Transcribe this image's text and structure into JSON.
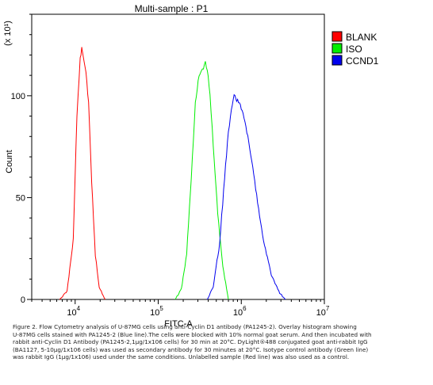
{
  "chart_data": {
    "type": "line",
    "title": "Multi-sample : P1",
    "xlabel": "FITC-A",
    "ylabel": "Count",
    "y_scale_note": "(x 10¹)",
    "x_scale": "log",
    "xlim": [
      3000,
      10000000
    ],
    "ylim": [
      0,
      140
    ],
    "x_ticks": [
      {
        "value": 10000,
        "base": "10",
        "exp": "4"
      },
      {
        "value": 100000,
        "base": "10",
        "exp": "5"
      },
      {
        "value": 1000000,
        "base": "10",
        "exp": "6"
      },
      {
        "value": 10000000,
        "base": "10",
        "exp": "7"
      }
    ],
    "y_ticks": [
      0,
      50,
      100
    ],
    "legend_position": "top-right",
    "series": [
      {
        "name": "BLANK",
        "color": "#ff0000",
        "x": [
          6500,
          8000,
          9500,
          10500,
          11500,
          12000,
          12300,
          12800,
          13500,
          14500,
          15800,
          17500,
          19500,
          23000
        ],
        "y": [
          0,
          4,
          30,
          90,
          118,
          123,
          121,
          117,
          112,
          96,
          58,
          22,
          6,
          0
        ]
      },
      {
        "name": "ISO",
        "color": "#00ee00",
        "x": [
          160000,
          190000,
          220000,
          250000,
          280000,
          310000,
          340000,
          370000,
          390000,
          420000,
          460000,
          520000,
          600000,
          700000
        ],
        "y": [
          0,
          5,
          22,
          60,
          96,
          110,
          113,
          116,
          113,
          100,
          76,
          42,
          16,
          0
        ]
      },
      {
        "name": "CCND1",
        "color": "#0000ee",
        "x": [
          390000,
          460000,
          550000,
          630000,
          700000,
          760000,
          820000,
          880000,
          950000,
          1050000,
          1200000,
          1450000,
          1800000,
          2300000,
          2900000,
          3400000
        ],
        "y": [
          0,
          6,
          28,
          60,
          82,
          94,
          100,
          98,
          96,
          92,
          80,
          58,
          32,
          12,
          3,
          0
        ]
      }
    ]
  },
  "caption_lines": [
    "Figure 2. Flow Cytometry analysis of U-87MG cells using anti-Cyclin D1 antibody (PA1245-2).  Overlay histogram showing",
    "U-87MG cells stained with PA1245-2 (Blue line).The cells were blocked with 10% normal goat serum. And then incubated with",
    "rabbit anti-Cyclin D1 Antibody (PA1245-2,1μg/1x106 cells) for 30 min at 20°C. DyLight®488 conjugated goat anti-rabbit IgG",
    "(BA1127, 5-10μg/1x106 cells) was used as secondary antibody for 30 minutes at 20°C. Isotype control antibody (Green line)",
    "was rabbit IgG (1μg/1x106) used under the same conditions. Unlabelled sample (Red line) was also used as a control."
  ]
}
